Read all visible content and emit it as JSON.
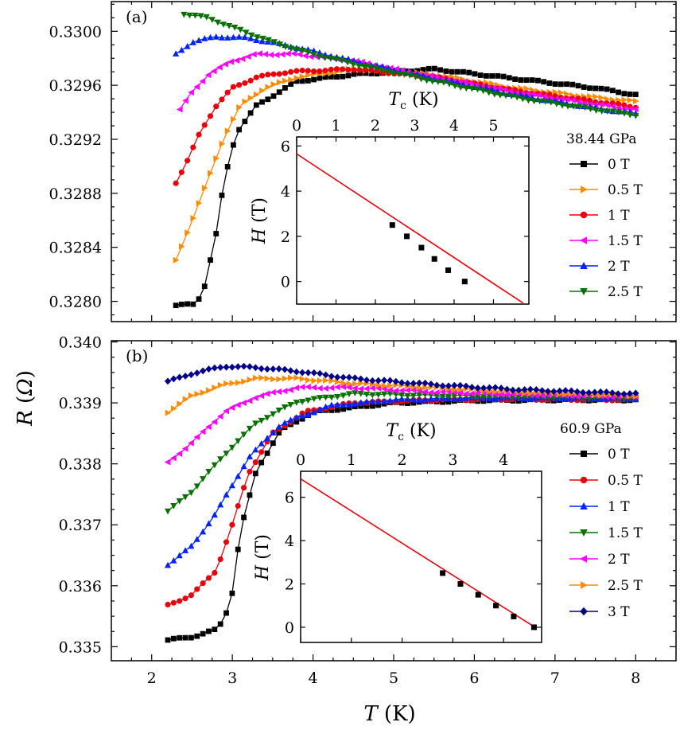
{
  "figure": {
    "xlabel_var": "T",
    "xlabel_unit": " (K)",
    "ylabel_var": "R",
    "ylabel_unit_open": " (",
    "ylabel_unit_sym": "Ω",
    "ylabel_unit_close": ")",
    "inset_xlabel_var": "T",
    "inset_xlabel_sub": "c",
    "inset_xlabel_unit": " (K)",
    "inset_ylabel_var": "H",
    "inset_ylabel_unit": " (T)"
  },
  "chart_data": [
    {
      "id": "a",
      "type": "line",
      "panel_label": "(a)",
      "pressure_label": "38.44 GPa",
      "xlim": [
        1.5,
        8.5
      ],
      "ylim": [
        0.32785,
        0.33022
      ],
      "xticks": [
        2,
        3,
        4,
        5,
        6,
        7,
        8
      ],
      "yticks": [
        0.328,
        0.3284,
        0.3288,
        0.3292,
        0.3296,
        0.33
      ],
      "ytick_labels": [
        "0.3280",
        "0.3284",
        "0.3288",
        "0.3292",
        "0.3296",
        "0.3300"
      ],
      "series": [
        {
          "name": "0 T",
          "field": 0,
          "color": "#000000",
          "marker": "square",
          "curve": [
            [
              2.3,
              0.32797
            ],
            [
              2.55,
              0.32798
            ],
            [
              2.65,
              0.3281
            ],
            [
              2.8,
              0.3285
            ],
            [
              2.9,
              0.3289
            ],
            [
              3.05,
              0.32925
            ],
            [
              3.3,
              0.32945
            ],
            [
              3.8,
              0.32963
            ],
            [
              4.5,
              0.32968
            ],
            [
              5.5,
              0.32972
            ],
            [
              6.5,
              0.32965
            ],
            [
              7.5,
              0.32958
            ],
            [
              8.0,
              0.32953
            ]
          ]
        },
        {
          "name": "0.5 T",
          "field": 0.5,
          "color": "#ff8c00",
          "marker": "triangle-right",
          "curve": [
            [
              2.3,
              0.3283
            ],
            [
              2.5,
              0.3286
            ],
            [
              2.7,
              0.3289
            ],
            [
              2.9,
              0.32922
            ],
            [
              3.1,
              0.32945
            ],
            [
              3.4,
              0.32958
            ],
            [
              3.8,
              0.32966
            ],
            [
              4.5,
              0.32972
            ],
            [
              5.5,
              0.32968
            ],
            [
              6.5,
              0.32958
            ],
            [
              7.5,
              0.32951
            ],
            [
              8.0,
              0.32948
            ]
          ]
        },
        {
          "name": "1 T",
          "field": 1,
          "color": "#e8000b",
          "marker": "circle",
          "curve": [
            [
              2.3,
              0.32888
            ],
            [
              2.45,
              0.32905
            ],
            [
              2.6,
              0.32925
            ],
            [
              2.8,
              0.32945
            ],
            [
              3.0,
              0.32958
            ],
            [
              3.3,
              0.32966
            ],
            [
              3.7,
              0.3297
            ],
            [
              4.5,
              0.32972
            ],
            [
              5.5,
              0.32966
            ],
            [
              6.5,
              0.32956
            ],
            [
              7.5,
              0.32948
            ],
            [
              8.0,
              0.32944
            ]
          ]
        },
        {
          "name": "1.5 T",
          "field": 1.5,
          "color": "#ff00ff",
          "marker": "triangle-left",
          "curve": [
            [
              2.35,
              0.32942
            ],
            [
              2.5,
              0.32955
            ],
            [
              2.7,
              0.32968
            ],
            [
              3.0,
              0.32978
            ],
            [
              3.3,
              0.32983
            ],
            [
              3.8,
              0.32983
            ],
            [
              4.5,
              0.32978
            ],
            [
              5.5,
              0.32966
            ],
            [
              6.5,
              0.32955
            ],
            [
              7.5,
              0.32946
            ],
            [
              8.0,
              0.32942
            ]
          ]
        },
        {
          "name": "2 T",
          "field": 2,
          "color": "#0022ff",
          "marker": "triangle-up",
          "curve": [
            [
              2.3,
              0.32983
            ],
            [
              2.5,
              0.32992
            ],
            [
              2.8,
              0.32996
            ],
            [
              3.2,
              0.32995
            ],
            [
              3.8,
              0.32988
            ],
            [
              4.5,
              0.32978
            ],
            [
              5.5,
              0.32965
            ],
            [
              6.5,
              0.32953
            ],
            [
              7.5,
              0.32943
            ],
            [
              8.0,
              0.32939
            ]
          ]
        },
        {
          "name": "2.5 T",
          "field": 2.5,
          "color": "#087000",
          "marker": "triangle-down",
          "curve": [
            [
              2.4,
              0.33013
            ],
            [
              2.7,
              0.3301
            ],
            [
              3.0,
              0.33003
            ],
            [
              3.5,
              0.32992
            ],
            [
              4.0,
              0.32983
            ],
            [
              4.5,
              0.32976
            ],
            [
              5.5,
              0.32963
            ],
            [
              6.5,
              0.32951
            ],
            [
              7.5,
              0.32942
            ],
            [
              8.0,
              0.32938
            ]
          ]
        }
      ],
      "inset": {
        "xlim": [
          0,
          5.9
        ],
        "ylim": [
          -1.0,
          6.4
        ],
        "xticks": [
          0,
          1,
          2,
          3,
          4,
          5
        ],
        "yticks": [
          0,
          2,
          4,
          6
        ],
        "points": [
          [
            2.43,
            2.5
          ],
          [
            2.8,
            2.0
          ],
          [
            3.17,
            1.5
          ],
          [
            3.5,
            1.0
          ],
          [
            3.85,
            0.5
          ],
          [
            4.27,
            0.0
          ]
        ],
        "fit_line": [
          [
            0.0,
            5.65
          ],
          [
            5.75,
            -0.95
          ]
        ]
      }
    },
    {
      "id": "b",
      "type": "line",
      "panel_label": "(b)",
      "pressure_label": "60.9 GPa",
      "xlim": [
        1.5,
        8.5
      ],
      "ylim": [
        0.33477,
        0.34002
      ],
      "xticks": [
        2,
        3,
        4,
        5,
        6,
        7,
        8
      ],
      "yticks": [
        0.335,
        0.336,
        0.337,
        0.338,
        0.339,
        0.34
      ],
      "ytick_labels": [
        "0.335",
        "0.336",
        "0.337",
        "0.338",
        "0.339",
        "0.340"
      ],
      "series": [
        {
          "name": "0 T",
          "field": 0,
          "color": "#000000",
          "marker": "square",
          "curve": [
            [
              2.2,
              0.33511
            ],
            [
              2.5,
              0.33516
            ],
            [
              2.8,
              0.33528
            ],
            [
              2.9,
              0.33545
            ],
            [
              3.0,
              0.3359
            ],
            [
              3.1,
              0.3369
            ],
            [
              3.3,
              0.3379
            ],
            [
              3.6,
              0.33855
            ],
            [
              4.0,
              0.33885
            ],
            [
              5.0,
              0.339
            ],
            [
              6.0,
              0.33904
            ],
            [
              7.0,
              0.33905
            ],
            [
              8.0,
              0.33905
            ]
          ]
        },
        {
          "name": "0.5 T",
          "field": 0.5,
          "color": "#e8000b",
          "marker": "circle",
          "curve": [
            [
              2.2,
              0.33568
            ],
            [
              2.5,
              0.33585
            ],
            [
              2.8,
              0.33625
            ],
            [
              3.0,
              0.337
            ],
            [
              3.2,
              0.33785
            ],
            [
              3.5,
              0.3385
            ],
            [
              3.9,
              0.33885
            ],
            [
              4.5,
              0.339
            ],
            [
              5.5,
              0.33905
            ],
            [
              6.5,
              0.33906
            ],
            [
              8.0,
              0.33905
            ]
          ]
        },
        {
          "name": "1 T",
          "field": 1,
          "color": "#0022ff",
          "marker": "triangle-up",
          "curve": [
            [
              2.2,
              0.33635
            ],
            [
              2.5,
              0.33665
            ],
            [
              2.8,
              0.3372
            ],
            [
              3.2,
              0.3381
            ],
            [
              3.6,
              0.33865
            ],
            [
              4.2,
              0.33895
            ],
            [
              5.0,
              0.33905
            ],
            [
              6.0,
              0.33908
            ],
            [
              7.0,
              0.33908
            ],
            [
              8.0,
              0.33907
            ]
          ]
        },
        {
          "name": "1.5 T",
          "field": 1.5,
          "color": "#087000",
          "marker": "triangle-down",
          "curve": [
            [
              2.2,
              0.33722
            ],
            [
              2.5,
              0.33755
            ],
            [
              2.9,
              0.33815
            ],
            [
              3.3,
              0.33868
            ],
            [
              3.8,
              0.33902
            ],
            [
              4.5,
              0.33915
            ],
            [
              5.5,
              0.33912
            ],
            [
              6.5,
              0.3391
            ],
            [
              8.0,
              0.33908
            ]
          ]
        },
        {
          "name": "2 T",
          "field": 2,
          "color": "#ff00ff",
          "marker": "triangle-left",
          "curve": [
            [
              2.2,
              0.33802
            ],
            [
              2.5,
              0.33835
            ],
            [
              2.9,
              0.33885
            ],
            [
              3.3,
              0.3391
            ],
            [
              3.8,
              0.33925
            ],
            [
              4.5,
              0.33925
            ],
            [
              5.5,
              0.33918
            ],
            [
              6.5,
              0.33914
            ],
            [
              8.0,
              0.3391
            ]
          ]
        },
        {
          "name": "2.5 T",
          "field": 2.5,
          "color": "#ff8c00",
          "marker": "triangle-right",
          "curve": [
            [
              2.2,
              0.33885
            ],
            [
              2.5,
              0.33912
            ],
            [
              2.9,
              0.3393
            ],
            [
              3.3,
              0.3394
            ],
            [
              3.8,
              0.3394
            ],
            [
              4.5,
              0.33932
            ],
            [
              5.5,
              0.33925
            ],
            [
              6.5,
              0.33918
            ],
            [
              8.0,
              0.33912
            ]
          ]
        },
        {
          "name": "3 T",
          "field": 3,
          "color": "#00008b",
          "marker": "diamond",
          "curve": [
            [
              2.2,
              0.33935
            ],
            [
              2.5,
              0.33948
            ],
            [
              2.9,
              0.3396
            ],
            [
              3.3,
              0.33958
            ],
            [
              3.8,
              0.33952
            ],
            [
              4.5,
              0.3394
            ],
            [
              5.5,
              0.3393
            ],
            [
              6.5,
              0.33922
            ],
            [
              8.0,
              0.33915
            ]
          ]
        }
      ],
      "inset": {
        "xlim": [
          0,
          4.75
        ],
        "ylim": [
          -0.7,
          7.2
        ],
        "xticks": [
          0,
          1,
          2,
          3,
          4
        ],
        "yticks": [
          0,
          2,
          4,
          6
        ],
        "points": [
          [
            2.8,
            2.5
          ],
          [
            3.15,
            2.0
          ],
          [
            3.5,
            1.5
          ],
          [
            3.85,
            1.0
          ],
          [
            4.2,
            0.5
          ],
          [
            4.6,
            0.0
          ]
        ],
        "fit_line": [
          [
            0.0,
            6.85
          ],
          [
            4.62,
            0.0
          ]
        ]
      }
    }
  ]
}
